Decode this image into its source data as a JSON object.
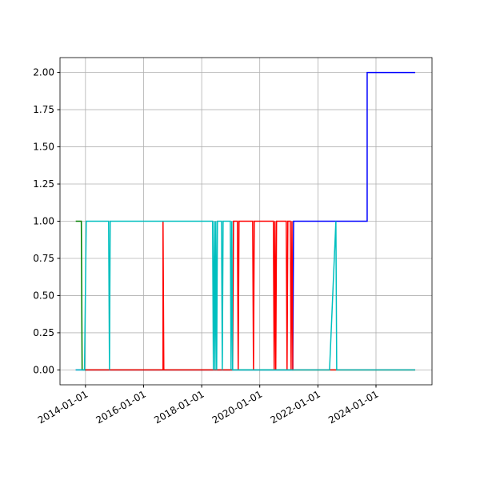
{
  "chart_data": {
    "type": "line",
    "xlim": [
      "2013-02-15",
      "2025-12-05"
    ],
    "ylim": [
      -0.1,
      2.1
    ],
    "xticks": [
      "2014-01-01",
      "2016-01-01",
      "2018-01-01",
      "2020-01-01",
      "2022-01-01",
      "2024-01-01"
    ],
    "yticks": [
      {
        "value": 0,
        "label": "0.00"
      },
      {
        "value": 0.25,
        "label": "0.25"
      },
      {
        "value": 0.5,
        "label": "0.50"
      },
      {
        "value": 0.75,
        "label": "0.75"
      },
      {
        "value": 1,
        "label": "1.00"
      },
      {
        "value": 1.25,
        "label": "1.25"
      },
      {
        "value": 1.5,
        "label": "1.50"
      },
      {
        "value": 1.75,
        "label": "1.75"
      },
      {
        "value": 2,
        "label": "2.00"
      }
    ],
    "grid": true,
    "series": [
      {
        "color": "#0000ff",
        "x": [
          "2013-09-01",
          "2021-02-19",
          "2021-03-01",
          "2023-09-12",
          "2023-09-12",
          "2025-05-08"
        ],
        "values": [
          0,
          0,
          1,
          1,
          2,
          2
        ]
      },
      {
        "color": "#008000",
        "x": [
          "2013-09-01",
          "2013-11-10",
          "2013-11-20",
          "2025-05-08"
        ],
        "values": [
          1,
          1,
          0,
          0
        ]
      },
      {
        "color": "#ff0000",
        "x": [
          "2014-01-01",
          "2016-09-02",
          "2016-09-02",
          "2016-09-12",
          "2019-01-25",
          "2019-02-05",
          "2019-03-26",
          "2019-04-05",
          "2019-04-15",
          "2019-10-04",
          "2019-10-14",
          "2019-10-24",
          "2020-06-20",
          "2020-06-30",
          "2020-07-10",
          "2020-07-20",
          "2020-07-30",
          "2020-11-29",
          "2020-12-09",
          "2020-12-19",
          "2021-01-19",
          "2021-01-29",
          "2021-02-09",
          "2021-02-19",
          "2025-05-08"
        ],
        "values": [
          0,
          0,
          1,
          0,
          0,
          1,
          1,
          0,
          1,
          1,
          0,
          1,
          1,
          0,
          1,
          0,
          1,
          1,
          0,
          1,
          1,
          0,
          1,
          0,
          0
        ]
      },
      {
        "color": "#00bfbf",
        "x": [
          "2013-09-01",
          "2013-12-20",
          "2014-01-11",
          "2014-10-19",
          "2014-10-30",
          "2014-11-08",
          "2018-05-18",
          "2018-05-28",
          "2018-06-08",
          "2018-06-18",
          "2018-06-28",
          "2018-07-08",
          "2018-07-18",
          "2018-09-07",
          "2018-09-17",
          "2018-09-27",
          "2018-12-27",
          "2019-01-05",
          "2019-01-15",
          "2019-01-25",
          "2022-05-27",
          "2022-08-15",
          "2022-08-25",
          "2025-05-08"
        ],
        "values": [
          0,
          0,
          1,
          1,
          0,
          1,
          1,
          0,
          1,
          0,
          1,
          0,
          1,
          1,
          0,
          1,
          1,
          0,
          1,
          0,
          0,
          1,
          0,
          0
        ]
      }
    ]
  }
}
